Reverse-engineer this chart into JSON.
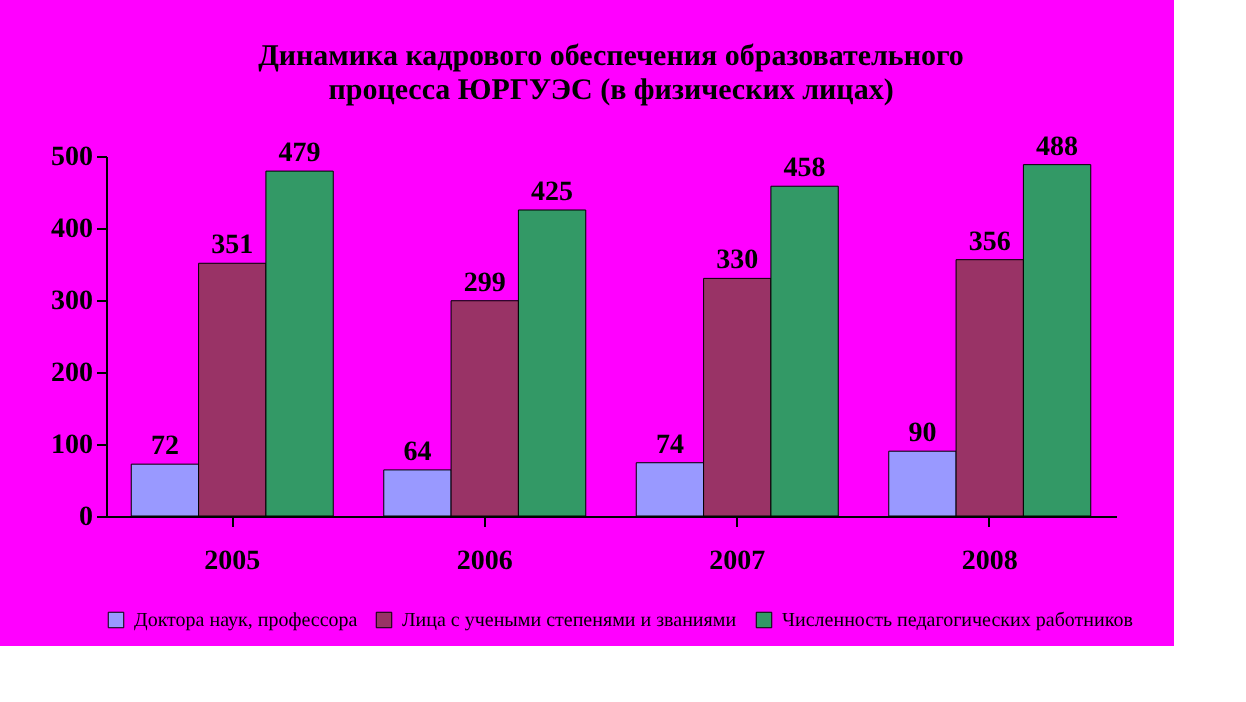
{
  "chart_data": {
    "type": "bar",
    "title": "Динамика кадрового обеспечения образовательного процесса ЮРГУЭС (в физических лицах)",
    "categories": [
      "2005",
      "2006",
      "2007",
      "2008"
    ],
    "series": [
      {
        "name": "Доктора наук, профессора",
        "color": "#9999ff",
        "values": [
          72,
          64,
          74,
          90
        ]
      },
      {
        "name": "Лица с учеными степенями и званиями",
        "color": "#993366",
        "values": [
          351,
          299,
          330,
          356
        ]
      },
      {
        "name": "Численность педагогических работников",
        "color": "#339966",
        "values": [
          479,
          425,
          458,
          488
        ]
      }
    ],
    "ylim": [
      0,
      500
    ],
    "yticks": [
      0,
      100,
      200,
      300,
      400,
      500
    ],
    "grid": false,
    "legend": "bottom",
    "data_labels": true
  }
}
